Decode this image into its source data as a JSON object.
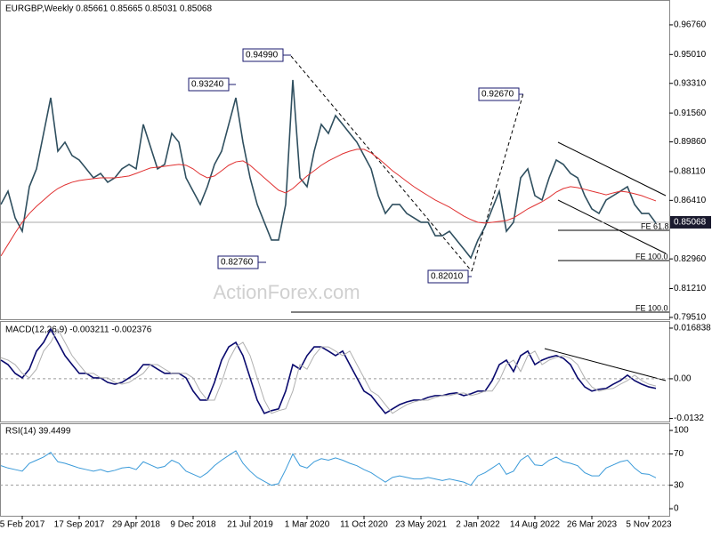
{
  "chart_data": [
    {
      "type": "line",
      "title": "EURGBP,Weekly  0.85661 0.85665 0.85031 0.85068",
      "watermark": "ActionForex.com",
      "last_price_label": "0.85068",
      "annotations": [
        "0.93240",
        "0.94990",
        "0.82760",
        "0.82010",
        "0.92670",
        "FE 61.8",
        "FE 100.0",
        "FE 100.0"
      ],
      "categories": [
        null,
        null,
        null,
        "5 Feb 2017",
        null,
        null,
        null,
        null,
        null,
        null,
        null,
        "17 Sep 2017",
        null,
        null,
        null,
        null,
        null,
        null,
        null,
        "29 Apr 2018",
        null,
        null,
        null,
        null,
        null,
        null,
        null,
        "9 Dec 2018",
        null,
        null,
        null,
        null,
        null,
        null,
        null,
        "21 Jul 2019",
        null,
        null,
        null,
        null,
        null,
        null,
        null,
        "1 Mar 2020",
        null,
        null,
        null,
        null,
        null,
        null,
        null,
        "11 Oct 2020",
        null,
        null,
        null,
        null,
        null,
        null,
        null,
        "23 May 2021",
        null,
        null,
        null,
        null,
        null,
        null,
        null,
        "2 Jan 2022",
        null,
        null,
        null,
        null,
        null,
        null,
        null,
        "14 Aug 2022",
        null,
        null,
        null,
        null,
        null,
        null,
        null,
        "26 Mar 2023",
        null,
        null,
        null,
        null,
        null,
        null,
        null,
        "5 Nov 2023",
        null
      ],
      "series": [
        {
          "color": "#2f4f5f",
          "values": [
            0.8617,
            0.8695,
            0.8538,
            0.8459,
            0.8722,
            0.8827,
            0.9036,
            0.9246,
            0.8931,
            0.8984,
            0.8905,
            0.8879,
            0.8827,
            0.8774,
            0.88,
            0.8748,
            0.8774,
            0.8827,
            0.8853,
            0.8827,
            0.9089,
            0.8958,
            0.8827,
            0.8853,
            0.9036,
            0.8984,
            0.8774,
            0.8695,
            0.8617,
            0.8722,
            0.8853,
            0.8931,
            0.9089,
            0.9246,
            0.8984,
            0.8774,
            0.8617,
            0.8512,
            0.8407,
            0.8407,
            0.8617,
            0.9351,
            0.8774,
            0.8722,
            0.8931,
            0.9089,
            0.9036,
            0.9141,
            0.9089,
            0.9036,
            0.8984,
            0.8905,
            0.8827,
            0.8669,
            0.8564,
            0.8617,
            0.8617,
            0.8564,
            0.8538,
            0.8512,
            0.8512,
            0.8433,
            0.8433,
            0.8459,
            0.8407,
            0.8355,
            0.8302,
            0.8407,
            0.8486,
            0.8591,
            0.8695,
            0.8459,
            0.8512,
            0.8774,
            0.8827,
            0.8669,
            0.8643,
            0.8774,
            0.8879,
            0.8853,
            0.88,
            0.8774,
            0.8669,
            0.8591,
            0.8564,
            0.8643,
            0.8669,
            0.8695,
            0.8722,
            0.8617,
            0.8564,
            0.8564,
            0.8507
          ]
        },
        {
          "color": "#e03030",
          "values": [
            0.8313,
            0.8381,
            0.8449,
            0.8512,
            0.8564,
            0.8606,
            0.8643,
            0.868,
            0.8711,
            0.8732,
            0.8748,
            0.8758,
            0.8764,
            0.8769,
            0.8774,
            0.8774,
            0.8774,
            0.8779,
            0.8785,
            0.88,
            0.8816,
            0.8832,
            0.8837,
            0.8842,
            0.8848,
            0.8853,
            0.8848,
            0.8827,
            0.8795,
            0.8774,
            0.8785,
            0.8816,
            0.8848,
            0.8868,
            0.8874,
            0.8848,
            0.8811,
            0.8774,
            0.8737,
            0.8701,
            0.8685,
            0.8711,
            0.8748,
            0.8785,
            0.8816,
            0.8848,
            0.8874,
            0.8895,
            0.8916,
            0.8931,
            0.8942,
            0.8942,
            0.8921,
            0.8889,
            0.8853,
            0.8816,
            0.8785,
            0.8753,
            0.8722,
            0.8695,
            0.8669,
            0.8643,
            0.8622,
            0.8601,
            0.8575,
            0.8549,
            0.8528,
            0.8512,
            0.8507,
            0.8512,
            0.8517,
            0.8522,
            0.8538,
            0.8564,
            0.8591,
            0.8612,
            0.8633,
            0.8659,
            0.869,
            0.8711,
            0.8722,
            0.8716,
            0.8706,
            0.8695,
            0.8685,
            0.8674,
            0.8685,
            0.8695,
            0.869,
            0.868,
            0.8669,
            0.8653,
            0.8638
          ]
        }
      ],
      "ylim": [
        0.7935,
        0.9812
      ],
      "yticks": [
        {
          "value": 0.9676,
          "label": "0.96760"
        },
        {
          "value": 0.9501,
          "label": "0.95010"
        },
        {
          "value": 0.9331,
          "label": "0.93310"
        },
        {
          "value": 0.9156,
          "label": "0.91560"
        },
        {
          "value": 0.8986,
          "label": "0.89860"
        },
        {
          "value": 0.8811,
          "label": "0.88110"
        },
        {
          "value": 0.8641,
          "label": "0.86410"
        },
        {
          "value": 0.8296,
          "label": "0.82960"
        },
        {
          "value": 0.8121,
          "label": "0.81210"
        },
        {
          "value": 0.7951,
          "label": "0.79510"
        }
      ]
    },
    {
      "type": "line",
      "title": "MACD(12,26,9) -0.003211 -0.002376",
      "series": [
        {
          "color": "#0a0a6e",
          "values": [
            0.0062,
            0.0047,
            0.0018,
            0.0003,
            0.0032,
            0.0092,
            0.0121,
            0.0165,
            0.0121,
            0.0077,
            0.0047,
            0.0018,
            0.0018,
            0.0003,
            0.0003,
            -0.0012,
            -0.0018,
            -0.0012,
            0.0003,
            0.0018,
            0.0047,
            0.0047,
            0.0032,
            0.0018,
            0.0018,
            0.0018,
            0.0003,
            -0.0041,
            -0.0071,
            -0.0071,
            -0.0012,
            0.0062,
            0.0106,
            0.0121,
            0.0077,
            0.0003,
            -0.0071,
            -0.0115,
            -0.0106,
            -0.01,
            -0.0041,
            0.0047,
            0.0032,
            0.0077,
            0.0106,
            0.0106,
            0.0092,
            0.0077,
            0.0092,
            0.0047,
            0.0003,
            -0.0041,
            -0.0056,
            -0.0086,
            -0.0115,
            -0.01,
            -0.0086,
            -0.0077,
            -0.0071,
            -0.0071,
            -0.0062,
            -0.0056,
            -0.0056,
            -0.005,
            -0.0047,
            -0.0056,
            -0.005,
            -0.0041,
            -0.0041,
            -0.0006,
            0.0047,
            0.0062,
            0.0024,
            0.0077,
            0.0092,
            0.0047,
            0.0062,
            0.0071,
            0.0077,
            0.0068,
            0.0047,
            0.0003,
            -0.0027,
            -0.0041,
            -0.0035,
            -0.0032,
            -0.0018,
            -0.0006,
            0.0012,
            -0.0006,
            -0.0018,
            -0.0027,
            -0.0032
          ]
        },
        {
          "color": "#b0b0b0",
          "values": [
            0.007,
            0.0062,
            0.0047,
            0.0018,
            0.0003,
            0.0032,
            0.0092,
            0.0121,
            0.0165,
            0.0121,
            0.0077,
            0.0047,
            0.0018,
            0.0018,
            0.0003,
            0.0003,
            -0.0012,
            -0.0018,
            -0.0012,
            0.0003,
            0.0018,
            0.0047,
            0.0047,
            0.0032,
            0.0018,
            0.0018,
            0.0018,
            0.0003,
            -0.0041,
            -0.0071,
            -0.0071,
            -0.0012,
            0.0062,
            0.0106,
            0.0121,
            0.0077,
            0.0003,
            -0.0071,
            -0.0115,
            -0.0106,
            -0.01,
            -0.0041,
            0.0047,
            0.0032,
            0.0077,
            0.0106,
            0.0106,
            0.0092,
            0.0077,
            0.0092,
            0.0047,
            0.0003,
            -0.0041,
            -0.0056,
            -0.0086,
            -0.0115,
            -0.01,
            -0.0086,
            -0.0077,
            -0.0071,
            -0.0071,
            -0.0062,
            -0.0056,
            -0.0056,
            -0.005,
            -0.0047,
            -0.0056,
            -0.005,
            -0.0041,
            -0.0041,
            -0.0006,
            0.0047,
            0.0062,
            0.0024,
            0.0077,
            0.0092,
            0.0047,
            0.0062,
            0.0071,
            0.0077,
            0.0068,
            0.0047,
            0.0003,
            -0.0027,
            -0.0041,
            -0.0035,
            -0.0032,
            -0.0018,
            -0.0006,
            0.0012,
            -0.0006,
            -0.0018,
            -0.0024
          ]
        }
      ],
      "ylim": [
        -0.0148,
        0.0189
      ],
      "yticks": [
        0.016838,
        {
          "value": 0,
          "label": "0.00"
        },
        -0.0132
      ],
      "levels": [
        0
      ]
    },
    {
      "type": "line",
      "title": "RSI(14) 39.4499",
      "series": [
        {
          "color": "#3a9ad9",
          "values": [
            55,
            52,
            50,
            48,
            58,
            62,
            66,
            72,
            60,
            58,
            55,
            52,
            50,
            48,
            50,
            47,
            49,
            52,
            53,
            50,
            60,
            56,
            52,
            54,
            62,
            58,
            48,
            44,
            40,
            46,
            55,
            62,
            68,
            74,
            58,
            48,
            40,
            35,
            30,
            32,
            50,
            70,
            55,
            52,
            60,
            64,
            62,
            65,
            62,
            58,
            55,
            50,
            46,
            40,
            34,
            40,
            42,
            40,
            38,
            38,
            40,
            38,
            36,
            38,
            36,
            34,
            30,
            42,
            46,
            52,
            58,
            44,
            48,
            62,
            68,
            56,
            55,
            62,
            66,
            60,
            58,
            55,
            46,
            42,
            42,
            52,
            56,
            60,
            62,
            52,
            45,
            44,
            39.4499
          ]
        }
      ],
      "ylim": [
        -9,
        108
      ],
      "yticks": [
        100,
        70,
        30,
        0
      ],
      "levels": [
        70,
        30
      ]
    }
  ]
}
